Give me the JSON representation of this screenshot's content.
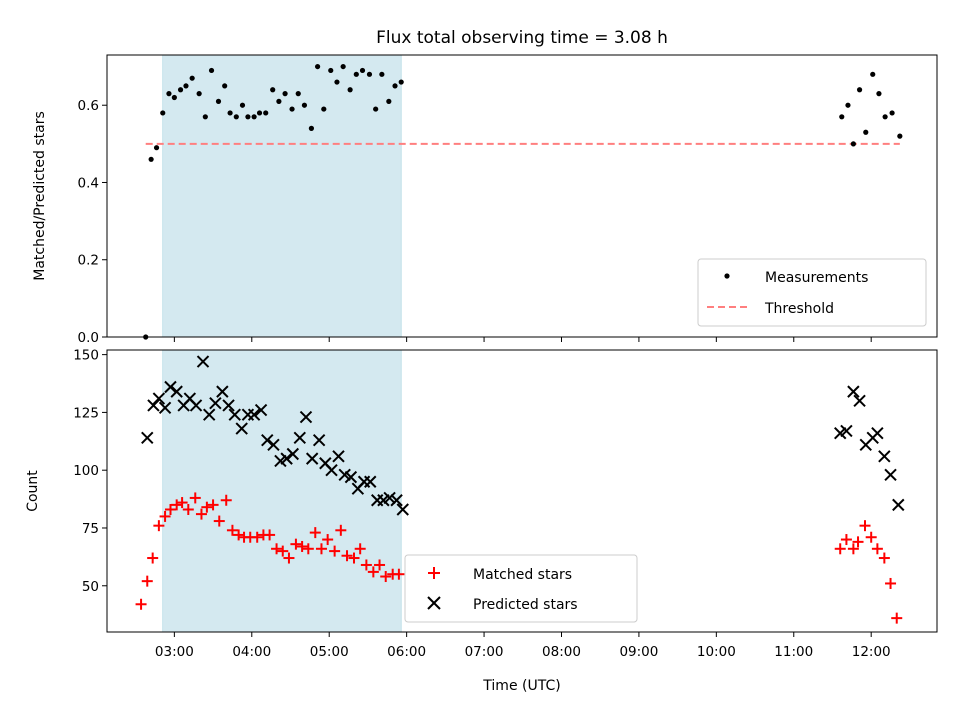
{
  "chart_data": {
    "title": "Flux total observing time = 3.08 h",
    "xlabel": "Time (UTC)",
    "x_unit": "hours UTC",
    "xlim": [
      2.13,
      12.85
    ],
    "xticks": [
      3,
      4,
      5,
      6,
      7,
      8,
      9,
      10,
      11,
      12
    ],
    "xtick_labels": [
      "03:00",
      "04:00",
      "05:00",
      "06:00",
      "07:00",
      "08:00",
      "09:00",
      "10:00",
      "11:00",
      "12:00"
    ],
    "shaded_interval": [
      2.85,
      5.93
    ],
    "shade_color": "#d4e9f0",
    "panels": [
      {
        "type": "scatter",
        "ylabel": "Matched/Predicted stars",
        "ylim": [
          0,
          0.73
        ],
        "yticks": [
          0.0,
          0.2,
          0.4,
          0.6
        ],
        "ytick_labels": [
          "0.0",
          "0.2",
          "0.4",
          "0.6"
        ],
        "legend_position": "lower-right",
        "threshold": {
          "name": "Threshold",
          "y": 0.5,
          "x_range": [
            2.63,
            12.37
          ],
          "color": "#ff7f7f",
          "dashed": true
        },
        "series": [
          {
            "name": "Measurements",
            "marker": "dot",
            "color": "#000000",
            "x": [
              2.63,
              2.7,
              2.77,
              2.85,
              2.93,
              3.0,
              3.08,
              3.15,
              3.23,
              3.32,
              3.4,
              3.48,
              3.57,
              3.65,
              3.72,
              3.8,
              3.88,
              3.95,
              4.03,
              4.1,
              4.18,
              4.27,
              4.35,
              4.43,
              4.52,
              4.6,
              4.68,
              4.77,
              4.85,
              4.93,
              5.02,
              5.1,
              5.18,
              5.27,
              5.35,
              5.43,
              5.52,
              5.6,
              5.68,
              5.77,
              5.85,
              5.93,
              11.62,
              11.7,
              11.77,
              11.85,
              11.93,
              12.02,
              12.1,
              12.18,
              12.27,
              12.37
            ],
            "y": [
              0.0,
              0.46,
              0.49,
              0.58,
              0.63,
              0.62,
              0.64,
              0.65,
              0.67,
              0.63,
              0.57,
              0.69,
              0.61,
              0.65,
              0.58,
              0.57,
              0.6,
              0.57,
              0.57,
              0.58,
              0.58,
              0.64,
              0.61,
              0.63,
              0.59,
              0.63,
              0.6,
              0.54,
              0.7,
              0.59,
              0.69,
              0.66,
              0.7,
              0.64,
              0.68,
              0.69,
              0.68,
              0.59,
              0.68,
              0.61,
              0.65,
              0.66,
              0.57,
              0.6,
              0.5,
              0.64,
              0.53,
              0.68,
              0.63,
              0.57,
              0.58,
              0.52
            ]
          }
        ]
      },
      {
        "type": "scatter",
        "ylabel": "Count",
        "ylim": [
          30,
          152
        ],
        "yticks": [
          50,
          75,
          100,
          125,
          150
        ],
        "ytick_labels": [
          "50",
          "75",
          "100",
          "125",
          "150"
        ],
        "legend_position": "lower-center",
        "series": [
          {
            "name": "Matched stars",
            "marker": "plus",
            "color": "#ff0000",
            "x": [
              2.57,
              2.65,
              2.72,
              2.8,
              2.88,
              2.95,
              3.03,
              3.1,
              3.18,
              3.27,
              3.35,
              3.42,
              3.5,
              3.58,
              3.67,
              3.75,
              3.83,
              3.9,
              3.98,
              4.07,
              4.15,
              4.23,
              4.32,
              4.4,
              4.48,
              4.57,
              4.65,
              4.73,
              4.82,
              4.9,
              4.98,
              5.07,
              5.15,
              5.23,
              5.32,
              5.4,
              5.48,
              5.57,
              5.65,
              5.73,
              5.82,
              5.9,
              11.6,
              11.68,
              11.77,
              11.83,
              11.92,
              12.0,
              12.08,
              12.17,
              12.25,
              12.33
            ],
            "y": [
              42,
              52,
              62,
              76,
              80,
              83,
              85,
              86,
              83,
              88,
              81,
              84,
              85,
              78,
              87,
              74,
              72,
              71,
              71,
              71,
              72,
              72,
              66,
              65,
              62,
              68,
              67,
              66,
              73,
              66,
              70,
              65,
              74,
              63,
              62,
              66,
              59,
              56,
              59,
              54,
              55,
              55,
              66,
              70,
              66,
              69,
              76,
              71,
              66,
              62,
              51,
              36
            ]
          },
          {
            "name": "Predicted stars",
            "marker": "x",
            "color": "#000000",
            "x": [
              2.65,
              2.73,
              2.8,
              2.88,
              2.95,
              3.03,
              3.12,
              3.2,
              3.28,
              3.37,
              3.45,
              3.53,
              3.62,
              3.7,
              3.78,
              3.87,
              3.95,
              4.03,
              4.12,
              4.2,
              4.28,
              4.37,
              4.45,
              4.53,
              4.62,
              4.7,
              4.78,
              4.87,
              4.95,
              5.03,
              5.12,
              5.2,
              5.28,
              5.37,
              5.45,
              5.53,
              5.62,
              5.7,
              5.78,
              5.87,
              5.95,
              11.6,
              11.68,
              11.77,
              11.85,
              11.93,
              12.02,
              12.08,
              12.17,
              12.25,
              12.35
            ],
            "y": [
              114,
              128,
              131,
              127,
              136,
              134,
              128,
              131,
              128,
              147,
              124,
              129,
              134,
              128,
              124,
              118,
              124,
              124,
              126,
              113,
              111,
              104,
              105,
              107,
              114,
              123,
              105,
              113,
              103,
              100,
              106,
              98,
              97,
              92,
              95,
              95,
              87,
              87,
              88,
              87,
              83,
              116,
              117,
              134,
              130,
              111,
              114,
              116,
              106,
              98,
              85
            ]
          }
        ]
      }
    ]
  }
}
